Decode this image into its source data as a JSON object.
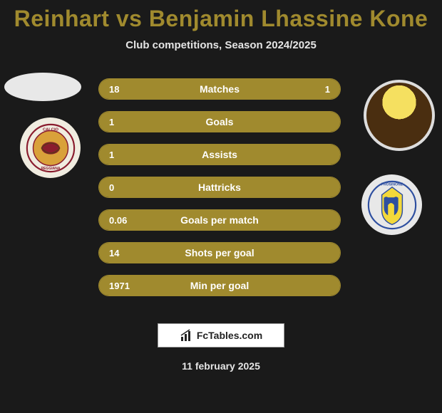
{
  "title": "Reinhart vs Benjamin Lhassine Kone",
  "subtitle": "Club competitions, Season 2024/2025",
  "footer_brand": "FcTables.com",
  "footer_date": "11 february 2025",
  "colors": {
    "bar_fill": "#a08a2e",
    "bar_border": "#a08a2e",
    "title": "#a08a2e",
    "bg": "#1a1a1a",
    "text_light": "#e5e5e5"
  },
  "bars": [
    {
      "label": "Matches",
      "left": "18",
      "right": "1",
      "left_pct": 80,
      "right_pct": 20
    },
    {
      "label": "Goals",
      "left": "1",
      "right": "",
      "left_pct": 100,
      "right_pct": 0
    },
    {
      "label": "Assists",
      "left": "1",
      "right": "",
      "left_pct": 100,
      "right_pct": 0
    },
    {
      "label": "Hattricks",
      "left": "0",
      "right": "",
      "left_pct": 100,
      "right_pct": 0
    },
    {
      "label": "Goals per match",
      "left": "0.06",
      "right": "",
      "left_pct": 100,
      "right_pct": 0
    },
    {
      "label": "Shots per goal",
      "left": "14",
      "right": "",
      "left_pct": 100,
      "right_pct": 0
    },
    {
      "label": "Min per goal",
      "left": "1971",
      "right": "",
      "left_pct": 100,
      "right_pct": 0
    }
  ],
  "players": {
    "left_name": "Reinhart",
    "right_name": "Benjamin Lhassine Kone"
  },
  "teams": {
    "left": {
      "name": "Reggiana",
      "primary": "#8a1c2e",
      "secondary": "#d9a13a"
    },
    "right": {
      "name": "Frosinone",
      "primary": "#f4d93a",
      "secondary": "#2e4fa0"
    }
  }
}
